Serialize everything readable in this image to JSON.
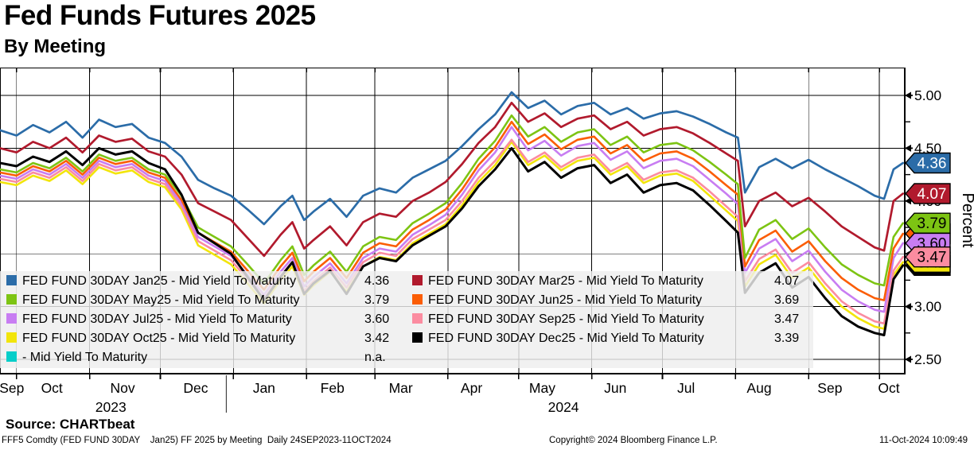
{
  "title": "Fed Funds Futures 2025",
  "subtitle": "By Meeting",
  "source_line": "Source: CHARTbeat",
  "footer": {
    "left": "FFF5 Comdty (FED FUND 30DAY    Jan25) FF 2025 by Meeting  Daily 24SEP2023-11OCT2024",
    "center": "Copyright© 2024 Bloomberg Finance L.P.",
    "right": "11-Oct-2024 10:09:49"
  },
  "chart_data": {
    "type": "line",
    "title": "Fed Funds Futures 2025 - By Meeting",
    "xlabel": "",
    "ylabel": "Percent",
    "ylim": [
      2.36,
      5.26
    ],
    "yticks_major": [
      "5.00",
      "4.50",
      "4.00",
      "3.50",
      "3.00",
      "2.50"
    ],
    "yticks_minor": [
      4.75,
      4.25,
      3.75,
      3.25,
      2.75
    ],
    "grid": true,
    "legend_position": "inside-lower-left",
    "x_unit": "days since 24SEP2023",
    "x_end_day": 383,
    "x_days": [
      0,
      7,
      14,
      21,
      28,
      35,
      42,
      49,
      56,
      63,
      70,
      77,
      84,
      91,
      98,
      105,
      112,
      119,
      124,
      129,
      133,
      140,
      147,
      154,
      161,
      168,
      175,
      182,
      189,
      196,
      203,
      210,
      217,
      224,
      231,
      238,
      245,
      252,
      259,
      266,
      273,
      280,
      287,
      294,
      301,
      308,
      313,
      316,
      322,
      329,
      336,
      343,
      350,
      357,
      364,
      371,
      375,
      379,
      383
    ],
    "months": [
      {
        "label": "Sep",
        "start_day": 0,
        "label_day": 5
      },
      {
        "label": "Oct",
        "start_day": 7,
        "label_day": 22
      },
      {
        "label": "Nov",
        "start_day": 38,
        "label_day": 52
      },
      {
        "label": "Dec",
        "start_day": 68,
        "label_day": 83
      },
      {
        "label": "Jan",
        "start_day": 99,
        "label_day": 112
      },
      {
        "label": "Feb",
        "start_day": 130,
        "label_day": 141
      },
      {
        "label": "Mar",
        "start_day": 159,
        "label_day": 170
      },
      {
        "label": "Apr",
        "start_day": 190,
        "label_day": 200
      },
      {
        "label": "May",
        "start_day": 220,
        "label_day": 230
      },
      {
        "label": "Jun",
        "start_day": 251,
        "label_day": 261
      },
      {
        "label": "Jul",
        "start_day": 281,
        "label_day": 291
      },
      {
        "label": "Aug",
        "start_day": 312,
        "label_day": 322
      },
      {
        "label": "Sep",
        "start_day": 343,
        "label_day": 352
      },
      {
        "label": "Oct",
        "start_day": 373,
        "label_day": 377
      }
    ],
    "years": [
      {
        "label": "2023",
        "center_day": 47
      },
      {
        "label": "2024",
        "center_day": 239
      }
    ],
    "year_divider_day": 96,
    "badge_order": [
      "dec25",
      "oct25",
      "jun25",
      "jul25",
      "sep25",
      "may25",
      "mar25",
      "jan25"
    ],
    "series": [
      {
        "id": "jan25",
        "label": "FED FUND 30DAY Jan25 - Mid Yield To Maturity",
        "value": "4.36",
        "color": "#2B6CA8",
        "badge_text_color": "#ffffff",
        "legend_col": 1,
        "legend_row": 1,
        "z": 8,
        "width": 2.7,
        "values": [
          4.67,
          4.62,
          4.72,
          4.65,
          4.75,
          4.6,
          4.77,
          4.7,
          4.73,
          4.6,
          4.55,
          4.42,
          4.2,
          4.12,
          4.05,
          3.92,
          3.78,
          3.95,
          4.05,
          3.82,
          3.9,
          4.02,
          3.85,
          4.05,
          4.12,
          4.08,
          4.22,
          4.3,
          4.38,
          4.52,
          4.68,
          4.82,
          5.03,
          4.88,
          4.95,
          4.82,
          4.9,
          4.93,
          4.82,
          4.88,
          4.78,
          4.83,
          4.85,
          4.8,
          4.73,
          4.65,
          4.6,
          4.08,
          4.32,
          4.4,
          4.31,
          4.39,
          4.3,
          4.22,
          4.14,
          4.05,
          4.02,
          4.3,
          4.36
        ]
      },
      {
        "id": "mar25",
        "label": "FED FUND 30DAY Mar25 - Mid Yield To Maturity",
        "value": "4.07",
        "color": "#B11A2D",
        "badge_text_color": "#ffffff",
        "legend_col": 2,
        "legend_row": 1,
        "z": 7,
        "width": 2.7,
        "values": [
          4.5,
          4.46,
          4.56,
          4.5,
          4.6,
          4.46,
          4.62,
          4.56,
          4.59,
          4.47,
          4.42,
          4.25,
          3.98,
          3.9,
          3.82,
          3.65,
          3.48,
          3.68,
          3.8,
          3.55,
          3.63,
          3.76,
          3.58,
          3.8,
          3.88,
          3.85,
          4.0,
          4.08,
          4.18,
          4.35,
          4.55,
          4.7,
          4.93,
          4.75,
          4.83,
          4.7,
          4.78,
          4.81,
          4.68,
          4.75,
          4.62,
          4.68,
          4.7,
          4.64,
          4.55,
          4.45,
          4.38,
          3.76,
          4.0,
          4.08,
          3.95,
          4.03,
          3.9,
          3.76,
          3.66,
          3.56,
          3.53,
          4.0,
          4.07
        ]
      },
      {
        "id": "may25",
        "label": "FED FUND 30DAY May25 - Mid Yield To Maturity",
        "value": "3.79",
        "color": "#7DC413",
        "badge_text_color": "#000000",
        "legend_col": 1,
        "legend_row": 2,
        "z": 5,
        "width": 2.6,
        "values": [
          4.3,
          4.27,
          4.36,
          4.31,
          4.41,
          4.28,
          4.44,
          4.38,
          4.41,
          4.3,
          4.25,
          4.05,
          3.75,
          3.66,
          3.57,
          3.4,
          3.22,
          3.44,
          3.57,
          3.3,
          3.39,
          3.52,
          3.33,
          3.57,
          3.66,
          3.63,
          3.79,
          3.88,
          3.98,
          4.17,
          4.4,
          4.57,
          4.81,
          4.61,
          4.7,
          4.56,
          4.65,
          4.68,
          4.53,
          4.61,
          4.46,
          4.53,
          4.55,
          4.48,
          4.37,
          4.25,
          4.16,
          3.46,
          3.73,
          3.82,
          3.64,
          3.74,
          3.56,
          3.4,
          3.3,
          3.22,
          3.2,
          3.66,
          3.79
        ]
      },
      {
        "id": "jun25",
        "label": "FED FUND 30DAY Jun25 - Mid Yield To Maturity",
        "value": "3.69",
        "color": "#FB5D05",
        "badge_text_color": "#000000",
        "legend_col": 2,
        "legend_row": 2,
        "z": 4,
        "width": 2.6,
        "values": [
          4.27,
          4.24,
          4.33,
          4.28,
          4.38,
          4.25,
          4.41,
          4.35,
          4.38,
          4.27,
          4.22,
          4.01,
          3.7,
          3.61,
          3.52,
          3.34,
          3.16,
          3.38,
          3.51,
          3.24,
          3.33,
          3.46,
          3.27,
          3.51,
          3.6,
          3.57,
          3.73,
          3.82,
          3.92,
          4.11,
          4.34,
          4.51,
          4.75,
          4.54,
          4.63,
          4.49,
          4.58,
          4.61,
          4.45,
          4.53,
          4.38,
          4.45,
          4.47,
          4.4,
          4.28,
          4.15,
          4.06,
          3.38,
          3.63,
          3.72,
          3.52,
          3.62,
          3.43,
          3.27,
          3.16,
          3.08,
          3.06,
          3.55,
          3.69
        ]
      },
      {
        "id": "jul25",
        "label": "FED FUND 30DAY Jul25 - Mid Yield To Maturity",
        "value": "3.60",
        "color": "#C87DF2",
        "badge_text_color": "#000000",
        "legend_col": 1,
        "legend_row": 3,
        "z": 3,
        "width": 2.6,
        "values": [
          4.24,
          4.21,
          4.3,
          4.25,
          4.35,
          4.22,
          4.38,
          4.32,
          4.35,
          4.24,
          4.19,
          3.98,
          3.66,
          3.57,
          3.48,
          3.3,
          3.11,
          3.33,
          3.46,
          3.19,
          3.28,
          3.41,
          3.22,
          3.46,
          3.55,
          3.52,
          3.68,
          3.77,
          3.87,
          4.06,
          4.29,
          4.46,
          4.7,
          4.48,
          4.57,
          4.43,
          4.52,
          4.55,
          4.39,
          4.47,
          4.31,
          4.38,
          4.4,
          4.33,
          4.2,
          4.07,
          3.97,
          3.32,
          3.55,
          3.64,
          3.43,
          3.53,
          3.33,
          3.16,
          3.05,
          2.97,
          2.95,
          3.46,
          3.6
        ]
      },
      {
        "id": "sep25",
        "label": "FED FUND 30DAY Sep25 - Mid Yield To Maturity",
        "value": "3.47",
        "color": "#FB8CA0",
        "badge_text_color": "#000000",
        "legend_col": 2,
        "legend_row": 3,
        "z": 2,
        "width": 2.6,
        "values": [
          4.21,
          4.18,
          4.27,
          4.22,
          4.32,
          4.19,
          4.35,
          4.29,
          4.32,
          4.21,
          4.16,
          3.95,
          3.62,
          3.53,
          3.44,
          3.26,
          3.07,
          3.29,
          3.42,
          3.15,
          3.24,
          3.37,
          3.18,
          3.42,
          3.51,
          3.48,
          3.64,
          3.73,
          3.82,
          4.0,
          4.22,
          4.38,
          4.58,
          4.37,
          4.46,
          4.32,
          4.41,
          4.44,
          4.28,
          4.36,
          4.2,
          4.27,
          4.29,
          4.22,
          4.09,
          3.95,
          3.85,
          3.24,
          3.45,
          3.54,
          3.32,
          3.42,
          3.22,
          3.05,
          2.94,
          2.86,
          2.84,
          3.34,
          3.47
        ]
      },
      {
        "id": "oct25",
        "label": "FED FUND 30DAY Oct25 - Mid Yield To Maturity",
        "value": "3.42",
        "color": "#F2E50B",
        "badge_text_color": "#000000",
        "legend_col": 1,
        "legend_row": 4,
        "z": 1,
        "width": 2.6,
        "values": [
          4.18,
          4.15,
          4.24,
          4.19,
          4.29,
          4.16,
          4.32,
          4.26,
          4.29,
          4.18,
          4.13,
          3.92,
          3.58,
          3.49,
          3.4,
          3.22,
          3.03,
          3.25,
          3.38,
          3.11,
          3.2,
          3.33,
          3.14,
          3.38,
          3.47,
          3.44,
          3.6,
          3.69,
          3.78,
          3.96,
          4.18,
          4.34,
          4.56,
          4.34,
          4.43,
          4.29,
          4.38,
          4.41,
          4.25,
          4.33,
          4.17,
          4.24,
          4.26,
          4.19,
          4.05,
          3.91,
          3.81,
          3.19,
          3.4,
          3.49,
          3.27,
          3.37,
          3.17,
          3.0,
          2.89,
          2.81,
          2.79,
          3.3,
          3.42
        ]
      },
      {
        "id": "dec25",
        "label": "FED FUND 30DAY Dec25 - Mid Yield To Maturity",
        "value": "3.39",
        "color": "#000000",
        "badge_text_color": "#ffffff",
        "legend_col": 2,
        "legend_row": 4,
        "z": 6,
        "width": 3,
        "values": [
          4.36,
          4.33,
          4.42,
          4.37,
          4.47,
          4.34,
          4.5,
          4.44,
          4.47,
          4.36,
          4.3,
          4.06,
          3.7,
          3.6,
          3.5,
          3.28,
          3.06,
          3.28,
          3.42,
          3.12,
          3.22,
          3.34,
          3.12,
          3.38,
          3.46,
          3.43,
          3.58,
          3.67,
          3.76,
          3.93,
          4.14,
          4.3,
          4.5,
          4.28,
          4.37,
          4.22,
          4.31,
          4.34,
          4.17,
          4.25,
          4.08,
          4.15,
          4.17,
          4.1,
          3.96,
          3.81,
          3.7,
          3.13,
          3.32,
          3.41,
          3.18,
          3.28,
          3.08,
          2.91,
          2.81,
          2.75,
          2.73,
          3.26,
          3.39
        ]
      }
    ],
    "na_series": {
      "id": "na",
      "label": "- Mid Yield To Maturity",
      "value": "n.a.",
      "color": "#06CEC9",
      "legend_col": 1,
      "legend_row": 5
    }
  }
}
